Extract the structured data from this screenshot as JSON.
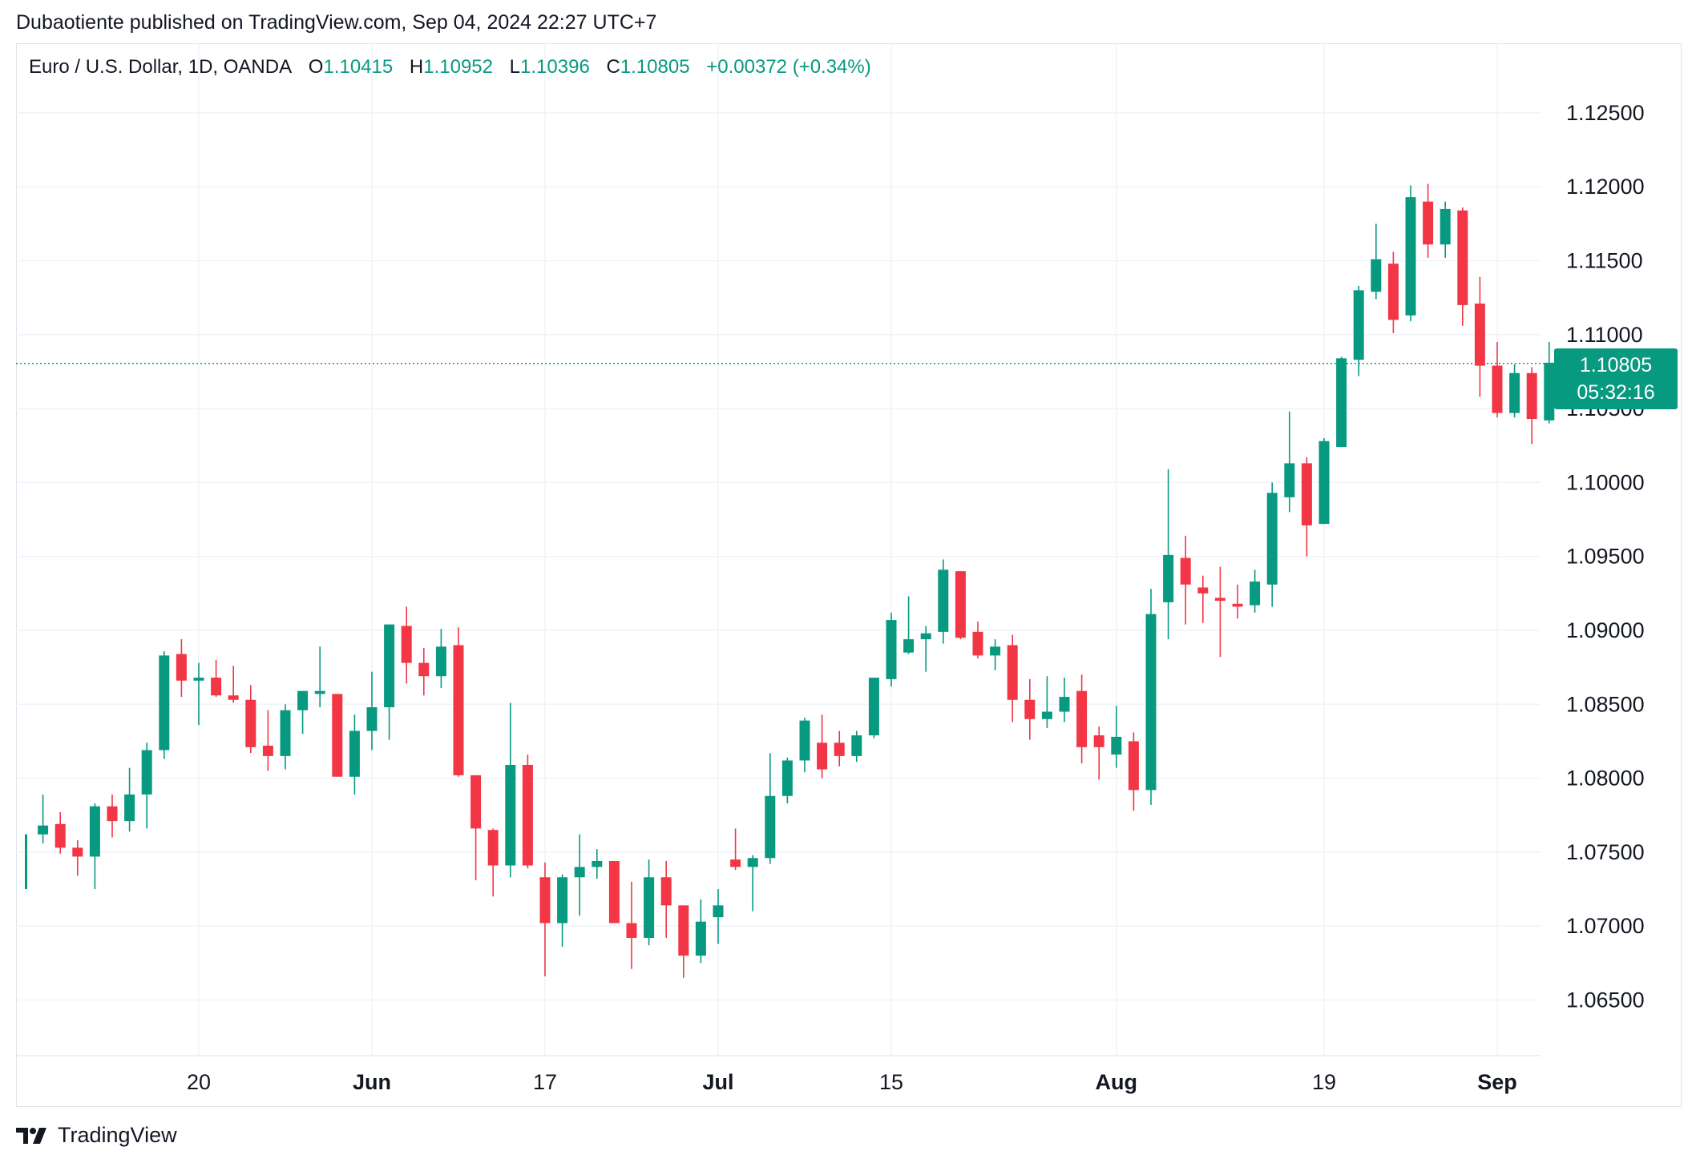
{
  "header": {
    "publisher_line": "Dubaotiente published on TradingView.com, Sep 04, 2024 22:27 UTC+7"
  },
  "symbol": {
    "name": "Euro / U.S. Dollar, 1D, OANDA",
    "open_label": "O",
    "open": "1.10415",
    "high_label": "H",
    "high": "1.10952",
    "low_label": "L",
    "low": "1.10396",
    "close_label": "C",
    "close": "1.10805",
    "change": "+0.00372 (+0.34%)"
  },
  "last_price": {
    "value": "1.10805",
    "countdown": "05:32:16"
  },
  "brand": {
    "name": "TradingView"
  },
  "colors": {
    "up": "#089981",
    "down": "#f23645",
    "grid": "#f0f3fa",
    "text": "#131722"
  },
  "chart_data": {
    "type": "candlestick",
    "grid": true,
    "price_axis": "right",
    "y_tick_labels": [
      "1.06500",
      "1.07000",
      "1.07500",
      "1.08000",
      "1.08500",
      "1.09000",
      "1.09500",
      "1.10000",
      "1.10500",
      "1.11000",
      "1.11500",
      "1.12000",
      "1.12500"
    ],
    "x_tick_labels": [
      {
        "label": "20",
        "index": 10,
        "bold": false
      },
      {
        "label": "Jun",
        "index": 20,
        "bold": true
      },
      {
        "label": "17",
        "index": 30,
        "bold": false
      },
      {
        "label": "Jul",
        "index": 40,
        "bold": true
      },
      {
        "label": "15",
        "index": 50,
        "bold": false
      },
      {
        "label": "Aug",
        "index": 63,
        "bold": true
      },
      {
        "label": "19",
        "index": 75,
        "bold": false
      },
      {
        "label": "Sep",
        "index": 85,
        "bold": true
      }
    ],
    "last_price_line": 1.10805,
    "candles": [
      [
        1.0725,
        1.0762,
        1.0725,
        1.0762
      ],
      [
        1.0762,
        1.0789,
        1.0756,
        1.0768
      ],
      [
        1.0769,
        1.0777,
        1.0749,
        1.0753
      ],
      [
        1.0753,
        1.0758,
        1.0734,
        1.0747
      ],
      [
        1.0747,
        1.0783,
        1.0725,
        1.0781
      ],
      [
        1.0781,
        1.0789,
        1.076,
        1.0771
      ],
      [
        1.0771,
        1.0807,
        1.0764,
        1.0789
      ],
      [
        1.0789,
        1.0824,
        1.0766,
        1.0819
      ],
      [
        1.0819,
        1.0886,
        1.0813,
        1.0883
      ],
      [
        1.0884,
        1.0894,
        1.0855,
        1.0866
      ],
      [
        1.0866,
        1.0878,
        1.0836,
        1.0868
      ],
      [
        1.0868,
        1.088,
        1.0855,
        1.0856
      ],
      [
        1.0856,
        1.0876,
        1.0851,
        1.0853
      ],
      [
        1.0853,
        1.0863,
        1.0817,
        1.0821
      ],
      [
        1.0822,
        1.0846,
        1.0805,
        1.0815
      ],
      [
        1.0815,
        1.085,
        1.0806,
        1.0846
      ],
      [
        1.0846,
        1.0859,
        1.083,
        1.0859
      ],
      [
        1.0857,
        1.0889,
        1.0848,
        1.0859
      ],
      [
        1.0857,
        1.0857,
        1.0801,
        1.0801
      ],
      [
        1.0801,
        1.0843,
        1.0789,
        1.0832
      ],
      [
        1.0832,
        1.0872,
        1.0819,
        1.0848
      ],
      [
        1.0848,
        1.0904,
        1.0826,
        1.0904
      ],
      [
        1.0903,
        1.0916,
        1.0864,
        1.0878
      ],
      [
        1.0878,
        1.0888,
        1.0856,
        1.0869
      ],
      [
        1.0869,
        1.0901,
        1.0861,
        1.0889
      ],
      [
        1.089,
        1.0902,
        1.0801,
        1.0802
      ],
      [
        1.0802,
        1.0802,
        1.0731,
        1.0766
      ],
      [
        1.0765,
        1.0766,
        1.072,
        1.0741
      ],
      [
        1.0741,
        1.0851,
        1.0733,
        1.0809
      ],
      [
        1.0809,
        1.0816,
        1.0739,
        1.0741
      ],
      [
        1.0733,
        1.0743,
        1.0666,
        1.0702
      ],
      [
        1.0702,
        1.0735,
        1.0686,
        1.0733
      ],
      [
        1.0733,
        1.0762,
        1.0707,
        1.074
      ],
      [
        1.074,
        1.0752,
        1.0732,
        1.0744
      ],
      [
        1.0744,
        1.0744,
        1.0702,
        1.0702
      ],
      [
        1.0702,
        1.073,
        1.0671,
        1.0692
      ],
      [
        1.0692,
        1.0745,
        1.0687,
        1.0733
      ],
      [
        1.0733,
        1.0744,
        1.0692,
        1.0714
      ],
      [
        1.0714,
        1.0714,
        1.0665,
        1.068
      ],
      [
        1.068,
        1.0718,
        1.0675,
        1.0703
      ],
      [
        1.0706,
        1.0725,
        1.0688,
        1.0714
      ],
      [
        1.0745,
        1.0766,
        1.0738,
        1.074
      ],
      [
        1.074,
        1.0748,
        1.071,
        1.0746
      ],
      [
        1.0746,
        1.0817,
        1.0742,
        1.0788
      ],
      [
        1.0788,
        1.0814,
        1.0783,
        1.0812
      ],
      [
        1.0812,
        1.0841,
        1.0804,
        1.0839
      ],
      [
        1.0824,
        1.0843,
        1.08,
        1.0806
      ],
      [
        1.0824,
        1.0832,
        1.0808,
        1.0815
      ],
      [
        1.0815,
        1.0832,
        1.0811,
        1.0829
      ],
      [
        1.0829,
        1.0868,
        1.0827,
        1.0868
      ],
      [
        1.0867,
        1.0912,
        1.0862,
        1.0907
      ],
      [
        1.0885,
        1.0923,
        1.0884,
        1.0894
      ],
      [
        1.0894,
        1.0903,
        1.0872,
        1.0898
      ],
      [
        1.0899,
        1.0948,
        1.0891,
        1.0941
      ],
      [
        1.094,
        1.094,
        1.0894,
        1.0895
      ],
      [
        1.0899,
        1.0906,
        1.0881,
        1.0883
      ],
      [
        1.0883,
        1.0894,
        1.0873,
        1.0889
      ],
      [
        1.089,
        1.0897,
        1.0838,
        1.0853
      ],
      [
        1.0853,
        1.0867,
        1.0826,
        1.084
      ],
      [
        1.084,
        1.0869,
        1.0834,
        1.0845
      ],
      [
        1.0845,
        1.0868,
        1.0838,
        1.0855
      ],
      [
        1.0859,
        1.087,
        1.081,
        1.0821
      ],
      [
        1.0829,
        1.0835,
        1.0799,
        1.0821
      ],
      [
        1.0816,
        1.0849,
        1.0807,
        1.0828
      ],
      [
        1.0825,
        1.0831,
        1.0778,
        1.0792
      ],
      [
        1.0792,
        1.0928,
        1.0782,
        1.0911
      ],
      [
        1.0919,
        1.1009,
        1.0894,
        1.0951
      ],
      [
        1.0949,
        1.0964,
        1.0904,
        1.0931
      ],
      [
        1.0929,
        1.0937,
        1.0905,
        1.0925
      ],
      [
        1.0922,
        1.0943,
        1.0882,
        1.092
      ],
      [
        1.0918,
        1.0931,
        1.0908,
        1.0916
      ],
      [
        1.0917,
        1.0941,
        1.0912,
        1.0933
      ],
      [
        1.0931,
        1.1,
        1.0916,
        1.0993
      ],
      [
        1.099,
        1.1048,
        1.098,
        1.1013
      ],
      [
        1.1013,
        1.1017,
        1.095,
        1.0971
      ],
      [
        1.0972,
        1.103,
        1.0972,
        1.1028
      ],
      [
        1.1024,
        1.1085,
        1.1024,
        1.1084
      ],
      [
        1.1083,
        1.1133,
        1.1072,
        1.113
      ],
      [
        1.1129,
        1.1175,
        1.1124,
        1.1151
      ],
      [
        1.1148,
        1.1156,
        1.1101,
        1.111
      ],
      [
        1.1113,
        1.1201,
        1.1109,
        1.1193
      ],
      [
        1.119,
        1.1202,
        1.1152,
        1.1161
      ],
      [
        1.1161,
        1.119,
        1.1152,
        1.1185
      ],
      [
        1.1184,
        1.1186,
        1.1106,
        1.112
      ],
      [
        1.1121,
        1.1139,
        1.1058,
        1.1079
      ],
      [
        1.1079,
        1.1095,
        1.1044,
        1.1047
      ],
      [
        1.1047,
        1.108,
        1.1044,
        1.1074
      ],
      [
        1.1074,
        1.1078,
        1.1026,
        1.1043
      ],
      [
        1.1042,
        1.1095,
        1.104,
        1.1081
      ]
    ]
  }
}
